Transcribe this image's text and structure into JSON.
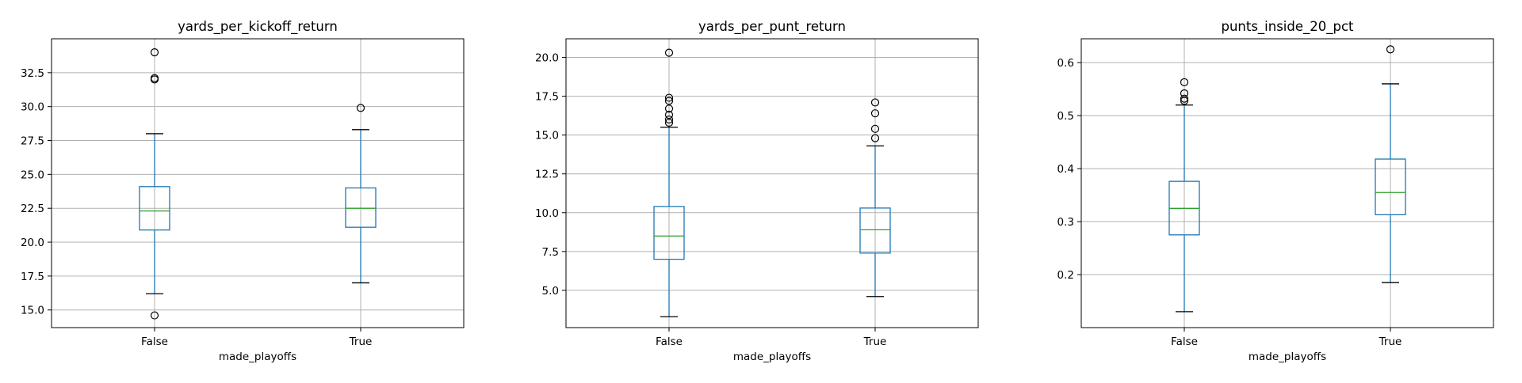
{
  "chart_data": [
    {
      "type": "box",
      "title": "yards_per_kickoff_return",
      "xlabel": "made_playoffs",
      "categories": [
        "False",
        "True"
      ],
      "ylim": [
        13.7,
        35.0
      ],
      "yticks": [
        15.0,
        17.5,
        20.0,
        22.5,
        25.0,
        27.5,
        30.0,
        32.5
      ],
      "ytick_labels": [
        "15.0",
        "17.5",
        "20.0",
        "22.5",
        "25.0",
        "27.5",
        "30.0",
        "32.5"
      ],
      "grid": true,
      "boxes": [
        {
          "category": "False",
          "whislo": 16.2,
          "q1": 20.9,
          "med": 22.3,
          "q3": 24.1,
          "whishi": 28.0,
          "fliers": [
            14.6,
            32.0,
            32.1,
            34.0
          ]
        },
        {
          "category": "True",
          "whislo": 17.0,
          "q1": 21.1,
          "med": 22.5,
          "q3": 24.0,
          "whishi": 28.3,
          "fliers": [
            29.9
          ]
        }
      ]
    },
    {
      "type": "box",
      "title": "yards_per_punt_return",
      "xlabel": "made_playoffs",
      "categories": [
        "False",
        "True"
      ],
      "ylim": [
        2.6,
        21.2
      ],
      "yticks": [
        5.0,
        7.5,
        10.0,
        12.5,
        15.0,
        17.5,
        20.0
      ],
      "ytick_labels": [
        "5.0",
        "7.5",
        "10.0",
        "12.5",
        "15.0",
        "17.5",
        "20.0"
      ],
      "grid": true,
      "boxes": [
        {
          "category": "False",
          "whislo": 3.3,
          "q1": 7.0,
          "med": 8.5,
          "q3": 10.4,
          "whishi": 15.5,
          "fliers": [
            15.8,
            16.0,
            16.3,
            16.7,
            17.2,
            17.4,
            20.3
          ]
        },
        {
          "category": "True",
          "whislo": 4.6,
          "q1": 7.4,
          "med": 8.9,
          "q3": 10.3,
          "whishi": 14.3,
          "fliers": [
            14.8,
            15.4,
            16.4,
            17.1
          ]
        }
      ]
    },
    {
      "type": "box",
      "title": "punts_inside_20_pct",
      "xlabel": "made_playoffs",
      "categories": [
        "False",
        "True"
      ],
      "ylim": [
        0.1,
        0.645
      ],
      "yticks": [
        0.2,
        0.3,
        0.4,
        0.5,
        0.6
      ],
      "ytick_labels": [
        "0.2",
        "0.3",
        "0.4",
        "0.5",
        "0.6"
      ],
      "grid": true,
      "boxes": [
        {
          "category": "False",
          "whislo": 0.13,
          "q1": 0.275,
          "med": 0.325,
          "q3": 0.376,
          "whishi": 0.52,
          "fliers": [
            0.528,
            0.532,
            0.542,
            0.563
          ]
        },
        {
          "category": "True",
          "whislo": 0.185,
          "q1": 0.313,
          "med": 0.355,
          "q3": 0.418,
          "whishi": 0.56,
          "fliers": [
            0.625
          ]
        }
      ]
    }
  ],
  "colors": {
    "box": "#1f77b4",
    "median": "#2ca02c",
    "caps": "#000000",
    "grid": "#b0b0b0",
    "flier_edge": "#000000"
  }
}
